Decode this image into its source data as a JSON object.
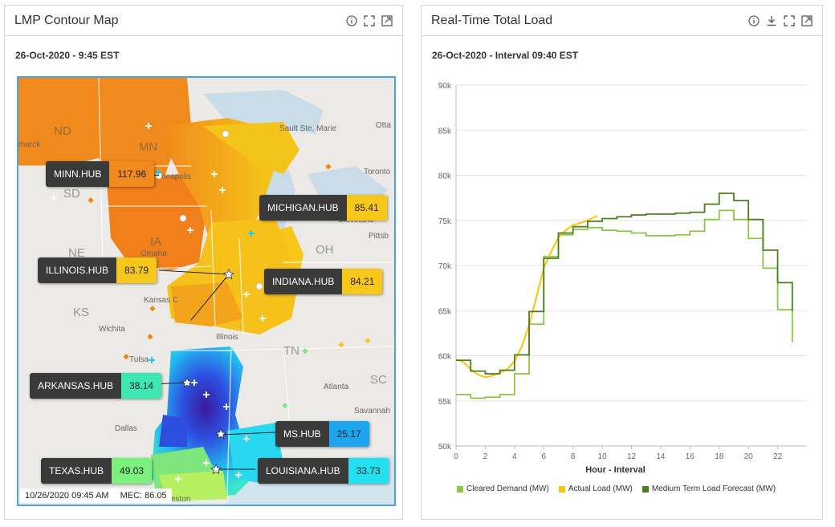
{
  "left_panel": {
    "title": "LMP Contour Map",
    "timestamp": "26-Oct-2020 - 9:45 EST",
    "icons": [
      "info-icon",
      "fullscreen-icon",
      "popout-icon"
    ],
    "hubs": {
      "minn": {
        "name": "MINN.HUB",
        "value": "117.96",
        "color": "#f08a1c"
      },
      "michigan": {
        "name": "MICHIGAN.HUB",
        "value": "85.41",
        "color": "#f7c71a"
      },
      "illinois": {
        "name": "ILLINOIS.HUB",
        "value": "83.79",
        "color": "#f7c71a"
      },
      "indiana": {
        "name": "INDIANA.HUB",
        "value": "84.21",
        "color": "#f7c71a"
      },
      "arkansas": {
        "name": "ARKANSAS.HUB",
        "value": "38.14",
        "color": "#3de8b0"
      },
      "ms": {
        "name": "MS.HUB",
        "value": "25.17",
        "color": "#1ea5f0"
      },
      "texas": {
        "name": "TEXAS.HUB",
        "value": "49.03",
        "color": "#7cf07c"
      },
      "louisiana": {
        "name": "LOUISIANA.HUB",
        "value": "33.73",
        "color": "#22e0f0"
      }
    },
    "state_labels": {
      "nd": "ND",
      "mn": "MN",
      "sd": "SD",
      "ne": "NE",
      "ia": "IA",
      "ks": "KS",
      "oh": "OH",
      "tn": "TN",
      "sc": "SC"
    },
    "city_labels": {
      "sault": "Sault Ste. Marie",
      "ottawa": "Otta",
      "toronto": "Toronto",
      "cleveland": "Cleveland",
      "pitts": "Pittsb",
      "wichita": "Wichita",
      "tulsa": "Tulsa",
      "atlanta": "Atlanta",
      "savannah": "Savannah",
      "dallas": "Dallas",
      "omaha": "Omaha",
      "kansas": "Kansas C",
      "mpls": "neapolis",
      "bismarck": "marck",
      "illinois_city": "Illinois",
      "weston": "eston"
    },
    "footer": {
      "time": "10/26/2020 09:45 AM",
      "mec": "MEC: 86.05"
    }
  },
  "right_panel": {
    "title": "Real-Time Total Load",
    "timestamp": "26-Oct-2020 - Interval 09:40 EST",
    "icons": [
      "info-icon",
      "download-icon",
      "fullscreen-icon",
      "popout-icon"
    ]
  },
  "chart_data": {
    "type": "line",
    "title": "",
    "xlabel": "Hour - Interval",
    "ylabel": "",
    "xlim": [
      0,
      24
    ],
    "ylim": [
      50000,
      90000
    ],
    "x_ticks": [
      "0",
      "2",
      "4",
      "6",
      "8",
      "10",
      "12",
      "14",
      "16",
      "18",
      "20",
      "22"
    ],
    "y_ticks": [
      "50k",
      "55k",
      "60k",
      "65k",
      "70k",
      "75k",
      "80k",
      "85k",
      "90k"
    ],
    "grid": "horizontal",
    "legend_position": "bottom",
    "series": [
      {
        "name": "Cleared Demand (MW)",
        "color": "#8dc63f",
        "step": true,
        "x": [
          0,
          1,
          2,
          3,
          4,
          5,
          6,
          7,
          8,
          9,
          10,
          11,
          12,
          13,
          14,
          15,
          16,
          17,
          18,
          19,
          20,
          21,
          22,
          23
        ],
        "y": [
          55700,
          55300,
          55400,
          55700,
          58000,
          63500,
          71000,
          73400,
          74000,
          74200,
          73900,
          73800,
          73600,
          73300,
          73300,
          73400,
          73800,
          75100,
          76100,
          75100,
          73000,
          69700,
          65100,
          61500
        ]
      },
      {
        "name": "Actual Load (MW)",
        "color": "#ffc20e",
        "step": false,
        "x": [
          0,
          0.5,
          1,
          1.5,
          2,
          2.5,
          3,
          3.5,
          4,
          4.5,
          5,
          5.5,
          6,
          6.5,
          7,
          7.5,
          8,
          8.5,
          9,
          9.4,
          9.67
        ],
        "y": [
          59600,
          59300,
          58500,
          57900,
          57600,
          57800,
          58100,
          58500,
          59400,
          61000,
          63400,
          66500,
          69700,
          71500,
          73100,
          73900,
          74500,
          74700,
          75000,
          75300,
          75500
        ]
      },
      {
        "name": "Medium Term Load Forecast (MW)",
        "color": "#4c7d1f",
        "step": true,
        "x": [
          0,
          1,
          2,
          3,
          4,
          5,
          6,
          7,
          8,
          9,
          10,
          11,
          12,
          13,
          14,
          15,
          16,
          17,
          18,
          19,
          20,
          21,
          22,
          23
        ],
        "y": [
          59500,
          58300,
          58000,
          58400,
          60100,
          64900,
          70800,
          73600,
          74300,
          74900,
          75200,
          75400,
          75600,
          75700,
          75700,
          75800,
          75900,
          76800,
          78000,
          77200,
          75100,
          71700,
          68100,
          65000
        ]
      }
    ]
  }
}
